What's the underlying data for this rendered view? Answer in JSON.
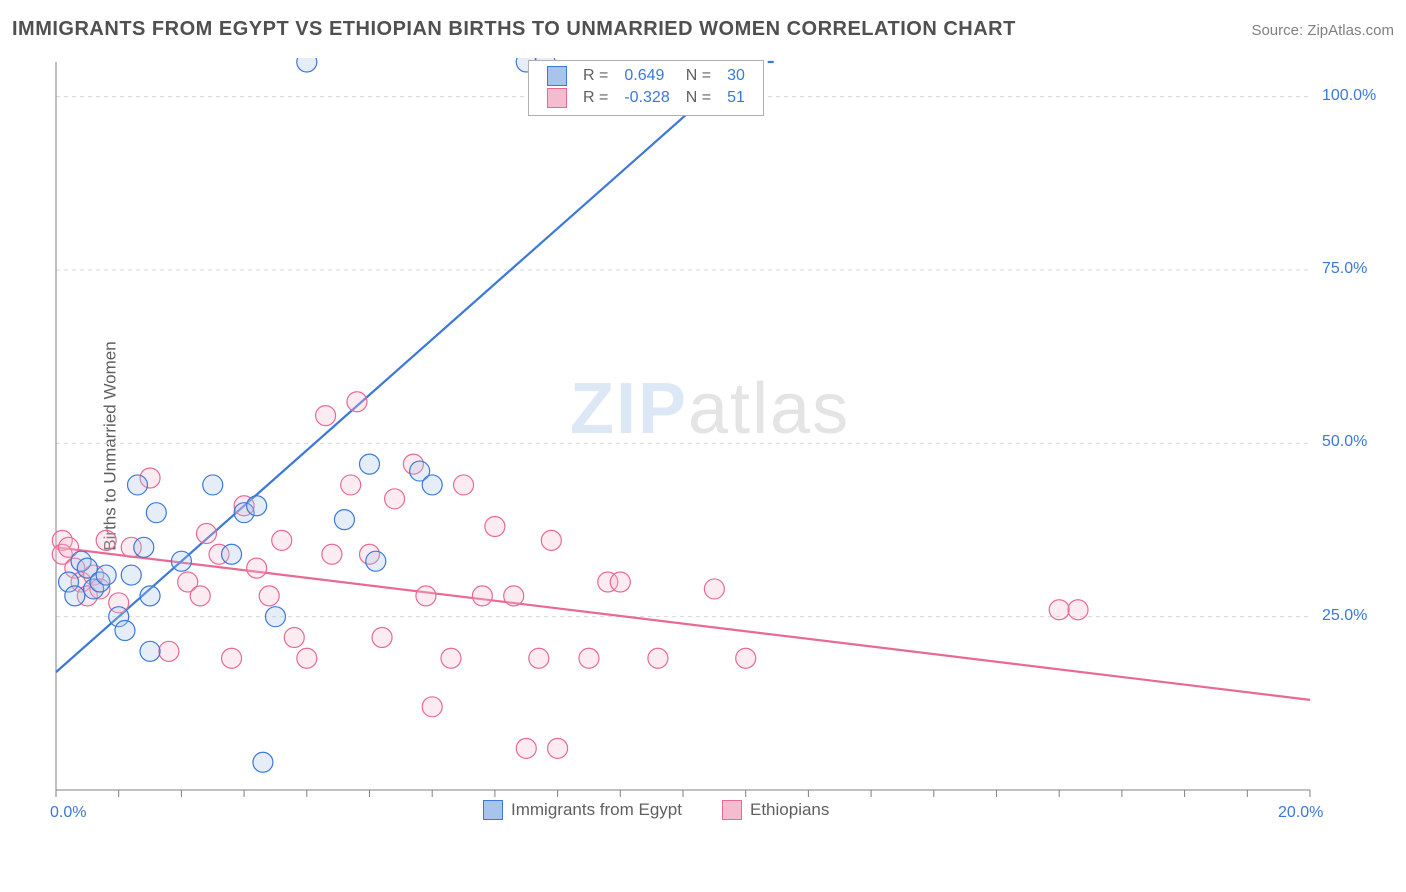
{
  "title": "IMMIGRANTS FROM EGYPT VS ETHIOPIAN BIRTHS TO UNMARRIED WOMEN CORRELATION CHART",
  "source": "Source: ZipAtlas.com",
  "y_axis_label": "Births to Unmarried Women",
  "watermark": {
    "part1": "ZIP",
    "part2": "atlas"
  },
  "chart": {
    "type": "scatter",
    "background_color": "#ffffff",
    "grid_color": "#d8d8d8",
    "grid_dash": "4,4",
    "axis_line_color": "#808080",
    "tick_color": "#808080",
    "xlim": [
      0,
      20
    ],
    "ylim": [
      0,
      105
    ],
    "x_ticks_major": [
      0,
      20
    ],
    "x_ticks_minor_step": 1,
    "y_ticks_major": [
      25,
      50,
      75,
      100
    ],
    "x_tick_labels": {
      "0": "0.0%",
      "20": "20.0%"
    },
    "y_tick_labels": {
      "25": "25.0%",
      "50": "50.0%",
      "75": "75.0%",
      "100": "100.0%"
    },
    "tick_label_color": "#3b78d8",
    "tick_label_fontsize": 16,
    "marker_radius": 10,
    "marker_stroke_width": 1.2,
    "marker_fill_opacity": 0.3,
    "reg_line_width": 2.2,
    "reg_line_extrapolate_dash": "6,5"
  },
  "series": {
    "egypt": {
      "label": "Immigrants from Egypt",
      "color_stroke": "#3b78d8",
      "color_fill": "#a8c4ec",
      "R": "0.649",
      "N": "30",
      "reg_line": {
        "x1": 0,
        "y1": 17,
        "x2": 11,
        "y2": 105,
        "extrapolate_to_x": 11.5
      },
      "points": [
        [
          0.2,
          30
        ],
        [
          0.3,
          28
        ],
        [
          0.4,
          33
        ],
        [
          0.5,
          32
        ],
        [
          0.6,
          29
        ],
        [
          0.7,
          30
        ],
        [
          0.8,
          31
        ],
        [
          1.0,
          25
        ],
        [
          1.1,
          23
        ],
        [
          1.2,
          31
        ],
        [
          1.3,
          44
        ],
        [
          1.4,
          35
        ],
        [
          1.5,
          28
        ],
        [
          1.5,
          20
        ],
        [
          1.6,
          40
        ],
        [
          2.0,
          33
        ],
        [
          2.5,
          44
        ],
        [
          2.8,
          34
        ],
        [
          3.0,
          40
        ],
        [
          3.2,
          41
        ],
        [
          3.3,
          4
        ],
        [
          3.5,
          25
        ],
        [
          4.0,
          105
        ],
        [
          4.6,
          39
        ],
        [
          5.0,
          47
        ],
        [
          5.1,
          33
        ],
        [
          5.8,
          46
        ],
        [
          6.0,
          44
        ],
        [
          7.5,
          105
        ],
        [
          7.8,
          105
        ]
      ]
    },
    "ethiopians": {
      "label": "Ethiopians",
      "color_stroke": "#e86a93",
      "color_fill": "#f5bccf",
      "R": "-0.328",
      "N": "51",
      "reg_line": {
        "x1": 0,
        "y1": 35,
        "x2": 20,
        "y2": 13
      },
      "points": [
        [
          0.1,
          36
        ],
        [
          0.1,
          34
        ],
        [
          0.2,
          35
        ],
        [
          0.3,
          32
        ],
        [
          0.4,
          30
        ],
        [
          0.5,
          28
        ],
        [
          0.6,
          31
        ],
        [
          0.7,
          29
        ],
        [
          0.8,
          36
        ],
        [
          1.0,
          27
        ],
        [
          1.2,
          35
        ],
        [
          1.5,
          45
        ],
        [
          1.8,
          20
        ],
        [
          2.1,
          30
        ],
        [
          2.3,
          28
        ],
        [
          2.4,
          37
        ],
        [
          2.6,
          34
        ],
        [
          2.8,
          19
        ],
        [
          3.0,
          41
        ],
        [
          3.2,
          32
        ],
        [
          3.4,
          28
        ],
        [
          3.6,
          36
        ],
        [
          3.8,
          22
        ],
        [
          4.0,
          19
        ],
        [
          4.3,
          54
        ],
        [
          4.4,
          34
        ],
        [
          4.7,
          44
        ],
        [
          4.8,
          56
        ],
        [
          5.0,
          34
        ],
        [
          5.2,
          22
        ],
        [
          5.4,
          42
        ],
        [
          5.7,
          47
        ],
        [
          5.9,
          28
        ],
        [
          6.0,
          12
        ],
        [
          6.3,
          19
        ],
        [
          6.5,
          44
        ],
        [
          6.8,
          28
        ],
        [
          7.0,
          38
        ],
        [
          7.3,
          28
        ],
        [
          7.5,
          6
        ],
        [
          7.7,
          19
        ],
        [
          7.9,
          36
        ],
        [
          8.0,
          6
        ],
        [
          8.5,
          19
        ],
        [
          8.8,
          30
        ],
        [
          9.0,
          30
        ],
        [
          9.6,
          19
        ],
        [
          10.5,
          29
        ],
        [
          11.0,
          19
        ],
        [
          16.0,
          26
        ],
        [
          16.3,
          26
        ]
      ]
    }
  },
  "legend_top": {
    "R_label": "R =",
    "N_label": "N =",
    "value_color": "#3b78d8",
    "label_color": "#606060"
  },
  "legend_bottom_color": "#606060"
}
